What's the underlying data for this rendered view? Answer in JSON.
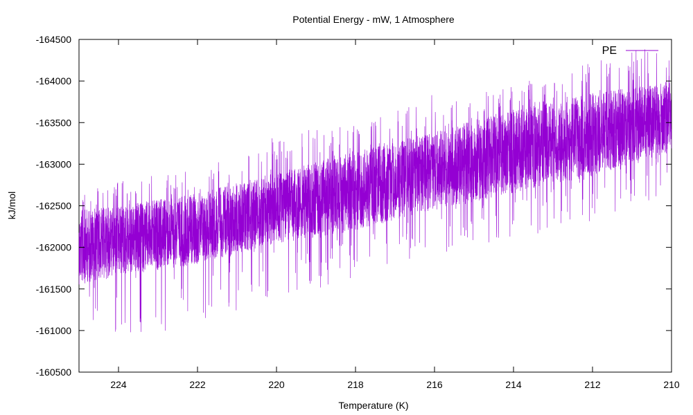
{
  "chart_data": {
    "type": "line",
    "title": "Potential Energy - mW, 1 Atmosphere",
    "xlabel": "Temperature (K)",
    "ylabel": "kJ/mol",
    "xlim": [
      225,
      210
    ],
    "ylim": [
      -164500,
      -160500
    ],
    "x_reversed": true,
    "grid": false,
    "legend_position": "top-right",
    "x_ticks": [
      224,
      222,
      220,
      218,
      216,
      214,
      212,
      210
    ],
    "y_ticks": [
      -160500,
      -161000,
      -161500,
      -162000,
      -162500,
      -163000,
      -163500,
      -164000,
      -164500
    ],
    "series": [
      {
        "name": "PE",
        "color": "#9400d3",
        "style": "dense noisy band (fluctuating signal)",
        "trend": {
          "x": [
            225,
            224,
            222,
            220,
            218,
            216,
            214,
            212,
            210
          ],
          "center": [
            -162000,
            -162050,
            -162200,
            -162450,
            -162650,
            -162900,
            -163100,
            -163350,
            -163600
          ],
          "typical_low": [
            -162450,
            -162500,
            -162650,
            -162900,
            -163150,
            -163400,
            -163650,
            -163850,
            -164000
          ],
          "typical_high": [
            -161550,
            -161650,
            -161800,
            -162050,
            -162200,
            -162450,
            -162650,
            -162850,
            -163150
          ],
          "extreme_low": [
            -162700,
            -162800,
            -162950,
            -163350,
            -163500,
            -163850,
            -163950,
            -164250,
            -164500
          ],
          "extreme_high": [
            -161250,
            -160900,
            -161050,
            -161350,
            -161650,
            -161900,
            -162100,
            -162300,
            -162650
          ]
        }
      }
    ]
  }
}
